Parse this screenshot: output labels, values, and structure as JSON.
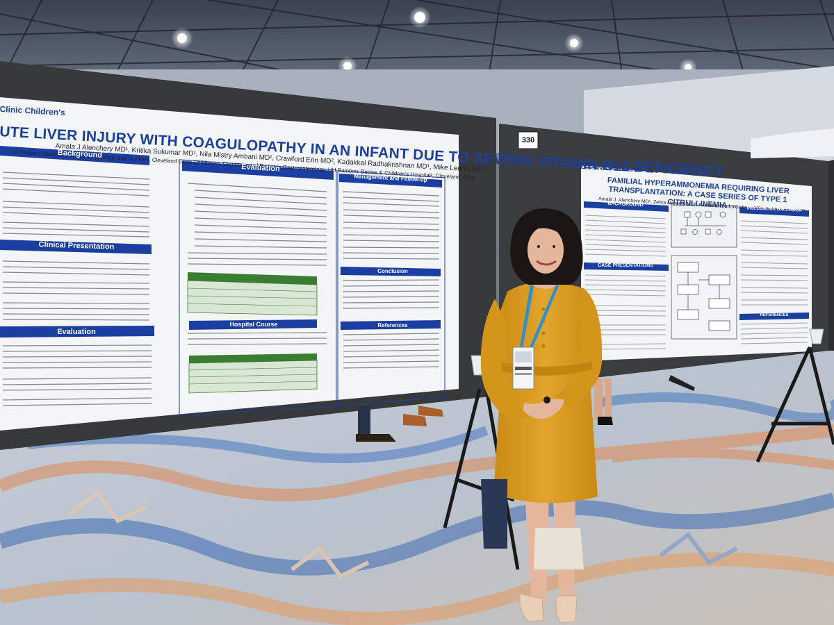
{
  "left_poster": {
    "institution": "Clinic Children's",
    "title": "UTE LIVER INJURY WITH COAGULOPATHY IN AN INFANT DUE TO SEVERE VITAMIN B12 DEFICIENCY",
    "authors": "Amala J Alenchery MD¹, Kritika Sukumar MD¹, Nila Mistry Ambani MD¹, Crawford Erin MD², Kadakkal Radhakrishnan MD¹, Mike Leonis MD¹",
    "affiliations": "of Pediatric Gastroenterology, Hepatology and Nutrition, Cleveland Clinic Children's¹, Department of Pediatric Gastroenterology, UH Rainbow Babies & Children's Hospital², Cleveland, Ohio",
    "sections": {
      "background": "Background",
      "clinical_presentation": "Clinical Presentation",
      "evaluation_left": "Evaluation",
      "evaluation_mid": "Evaluation",
      "hospital_course": "Hospital Course",
      "management": "Management and Follow-up",
      "conclusion": "Conclusion",
      "references": "References"
    }
  },
  "right_poster": {
    "board_number": "330",
    "institution": "Cleveland Clinic Children's",
    "title": "FAMILIAL HYPERAMMONEMIA REQUIRING LIVER TRANSPLANTATION: A CASE SERIES OF TYPE 1 CITRULLINEMIA",
    "authors": "Amala J. Alenchery MD¹, Zehra Naseem MD², Kadakkal Radhakrishnan MD¹, Sobia Laique MD²",
    "sections": {
      "background": "BACKGROUND",
      "case_presentations": "CASE PRESENTATIONS",
      "discussion": "DISCUSSION/CONCLUSION",
      "references": "REFERENCES"
    }
  },
  "colors": {
    "poster_blue": "#1b3fa0",
    "dress": "#d99a1c",
    "board": "#3a3d3f",
    "lanyard": "#2f8fd0"
  }
}
